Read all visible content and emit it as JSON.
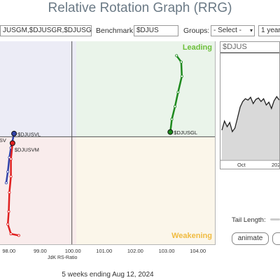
{
  "title": "Relative Rotation Graph (RRG)",
  "toolbar": {
    "symbols_value": "JUSGM,$DJUSGR,$DJUSGS",
    "benchmark_label": "Benchmark:",
    "benchmark_value": "$DJUS",
    "groups_label": "Groups:",
    "groups_value": "- Select -",
    "period_value": "1 year"
  },
  "quadrants": {
    "leading": "Leading",
    "weakening": "Weakening"
  },
  "chart_data": {
    "type": "scatter",
    "xlabel": "JdK RS-Ratio",
    "xticks": [
      "98.00",
      "99.00",
      "100.00",
      "101.00",
      "102.00",
      "103.00",
      "104.00"
    ],
    "xlim": [
      97.7,
      104.6
    ],
    "ylim": [
      96.6,
      103.0
    ],
    "center": [
      100.0,
      100.0
    ],
    "series": [
      {
        "name": "$DJUSGL",
        "color": "#1e8a1e",
        "points": [
          [
            103.35,
            102.55
          ],
          [
            103.5,
            102.35
          ],
          [
            103.52,
            101.9
          ],
          [
            103.4,
            101.4
          ],
          [
            103.3,
            100.95
          ],
          [
            103.2,
            100.55
          ],
          [
            103.15,
            100.15
          ]
        ]
      },
      {
        "name": "$DJUSVL",
        "color": "#3344aa",
        "points": [
          [
            97.9,
            98.55
          ],
          [
            97.95,
            98.9
          ],
          [
            98.0,
            99.35
          ],
          [
            98.05,
            99.65
          ],
          [
            98.15,
            100.1
          ]
        ]
      },
      {
        "name": "$DJUSVM",
        "color": "#e02020",
        "points": [
          [
            98.3,
            96.9
          ],
          [
            98.05,
            96.95
          ],
          [
            97.95,
            97.25
          ],
          [
            97.98,
            97.65
          ],
          [
            98.0,
            98.25
          ],
          [
            98.05,
            98.75
          ],
          [
            98.05,
            99.3
          ],
          [
            98.1,
            99.8
          ]
        ]
      }
    ],
    "labels": [
      {
        "text": "$DJUSGL",
        "series": "$DJUSGL"
      },
      {
        "text": "$DJUSVL",
        "series": "$DJUSVL"
      },
      {
        "text": "$DJUSVM",
        "series": "$DJUSVM"
      },
      {
        "text": "$DJUSV",
        "series": "partial"
      }
    ]
  },
  "price_chart": {
    "title": "$DJUS",
    "xticks": [
      "Oct",
      "202"
    ],
    "values": [
      42,
      55,
      47,
      53,
      40,
      45,
      60,
      75,
      83,
      87,
      85,
      89,
      80,
      86,
      88,
      83,
      87,
      78,
      82,
      73,
      84,
      90,
      85
    ],
    "ylim": [
      0,
      100
    ]
  },
  "tail_length_label": "Tail Length:",
  "animate_label": "animate",
  "footer": "5 weeks ending Aug 12, 2024"
}
